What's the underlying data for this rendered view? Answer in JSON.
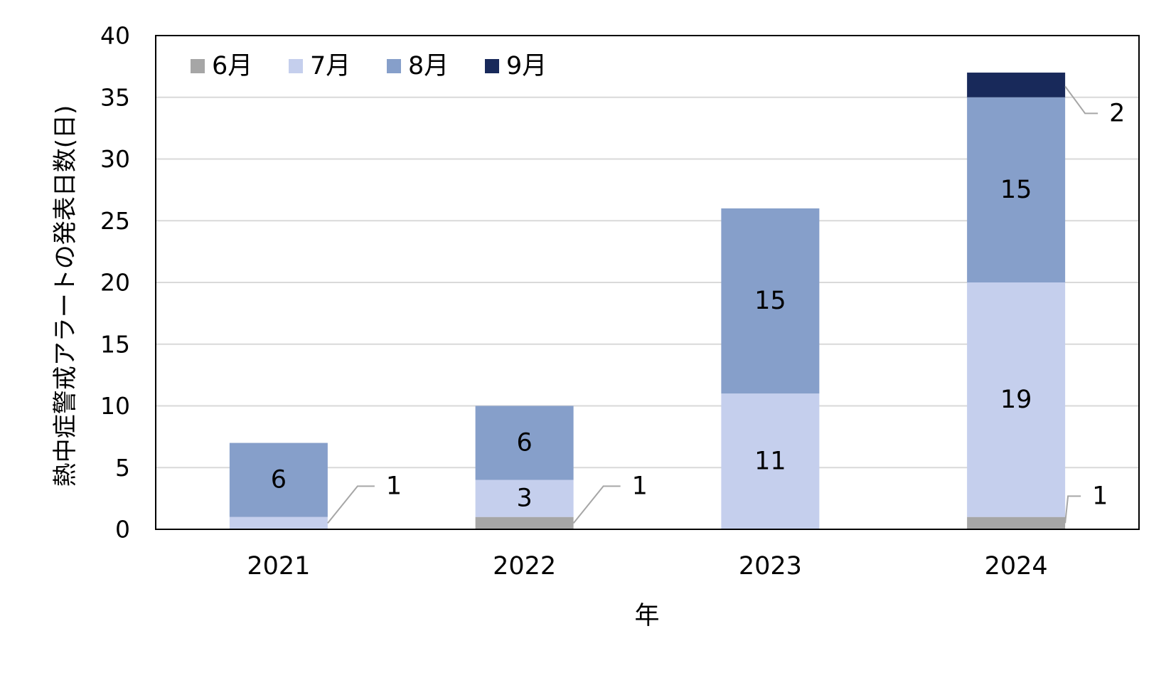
{
  "chart_data": {
    "type": "bar",
    "stacked": true,
    "title": "",
    "xlabel": "年",
    "ylabel": "熱中症警戒アラートの発表日数(日)",
    "ylim": [
      0,
      40
    ],
    "yticks": [
      0,
      5,
      10,
      15,
      20,
      25,
      30,
      35,
      40
    ],
    "grid": true,
    "legend_position": "top-left",
    "categories": [
      "2021",
      "2022",
      "2023",
      "2024"
    ],
    "series": [
      {
        "name": "6月",
        "color": "#a6a6a6",
        "values": [
          0,
          1,
          0,
          1
        ]
      },
      {
        "name": "7月",
        "color": "#c5cfed",
        "values": [
          1,
          3,
          11,
          19
        ]
      },
      {
        "name": "8月",
        "color": "#869fca",
        "values": [
          6,
          6,
          15,
          15
        ]
      },
      {
        "name": "9月",
        "color": "#18295a",
        "values": [
          0,
          0,
          0,
          2
        ]
      }
    ],
    "data_labels": [
      {
        "category": "2021",
        "series": "7月",
        "text": "1",
        "callout": true
      },
      {
        "category": "2021",
        "series": "8月",
        "text": "6"
      },
      {
        "category": "2022",
        "series": "6月",
        "text": "1",
        "callout": true
      },
      {
        "category": "2022",
        "series": "7月",
        "text": "3"
      },
      {
        "category": "2022",
        "series": "8月",
        "text": "6"
      },
      {
        "category": "2023",
        "series": "7月",
        "text": "11"
      },
      {
        "category": "2023",
        "series": "8月",
        "text": "15"
      },
      {
        "category": "2024",
        "series": "6月",
        "text": "1",
        "callout": true
      },
      {
        "category": "2024",
        "series": "7月",
        "text": "19"
      },
      {
        "category": "2024",
        "series": "8月",
        "text": "15"
      },
      {
        "category": "2024",
        "series": "9月",
        "text": "2",
        "callout": true
      }
    ]
  }
}
